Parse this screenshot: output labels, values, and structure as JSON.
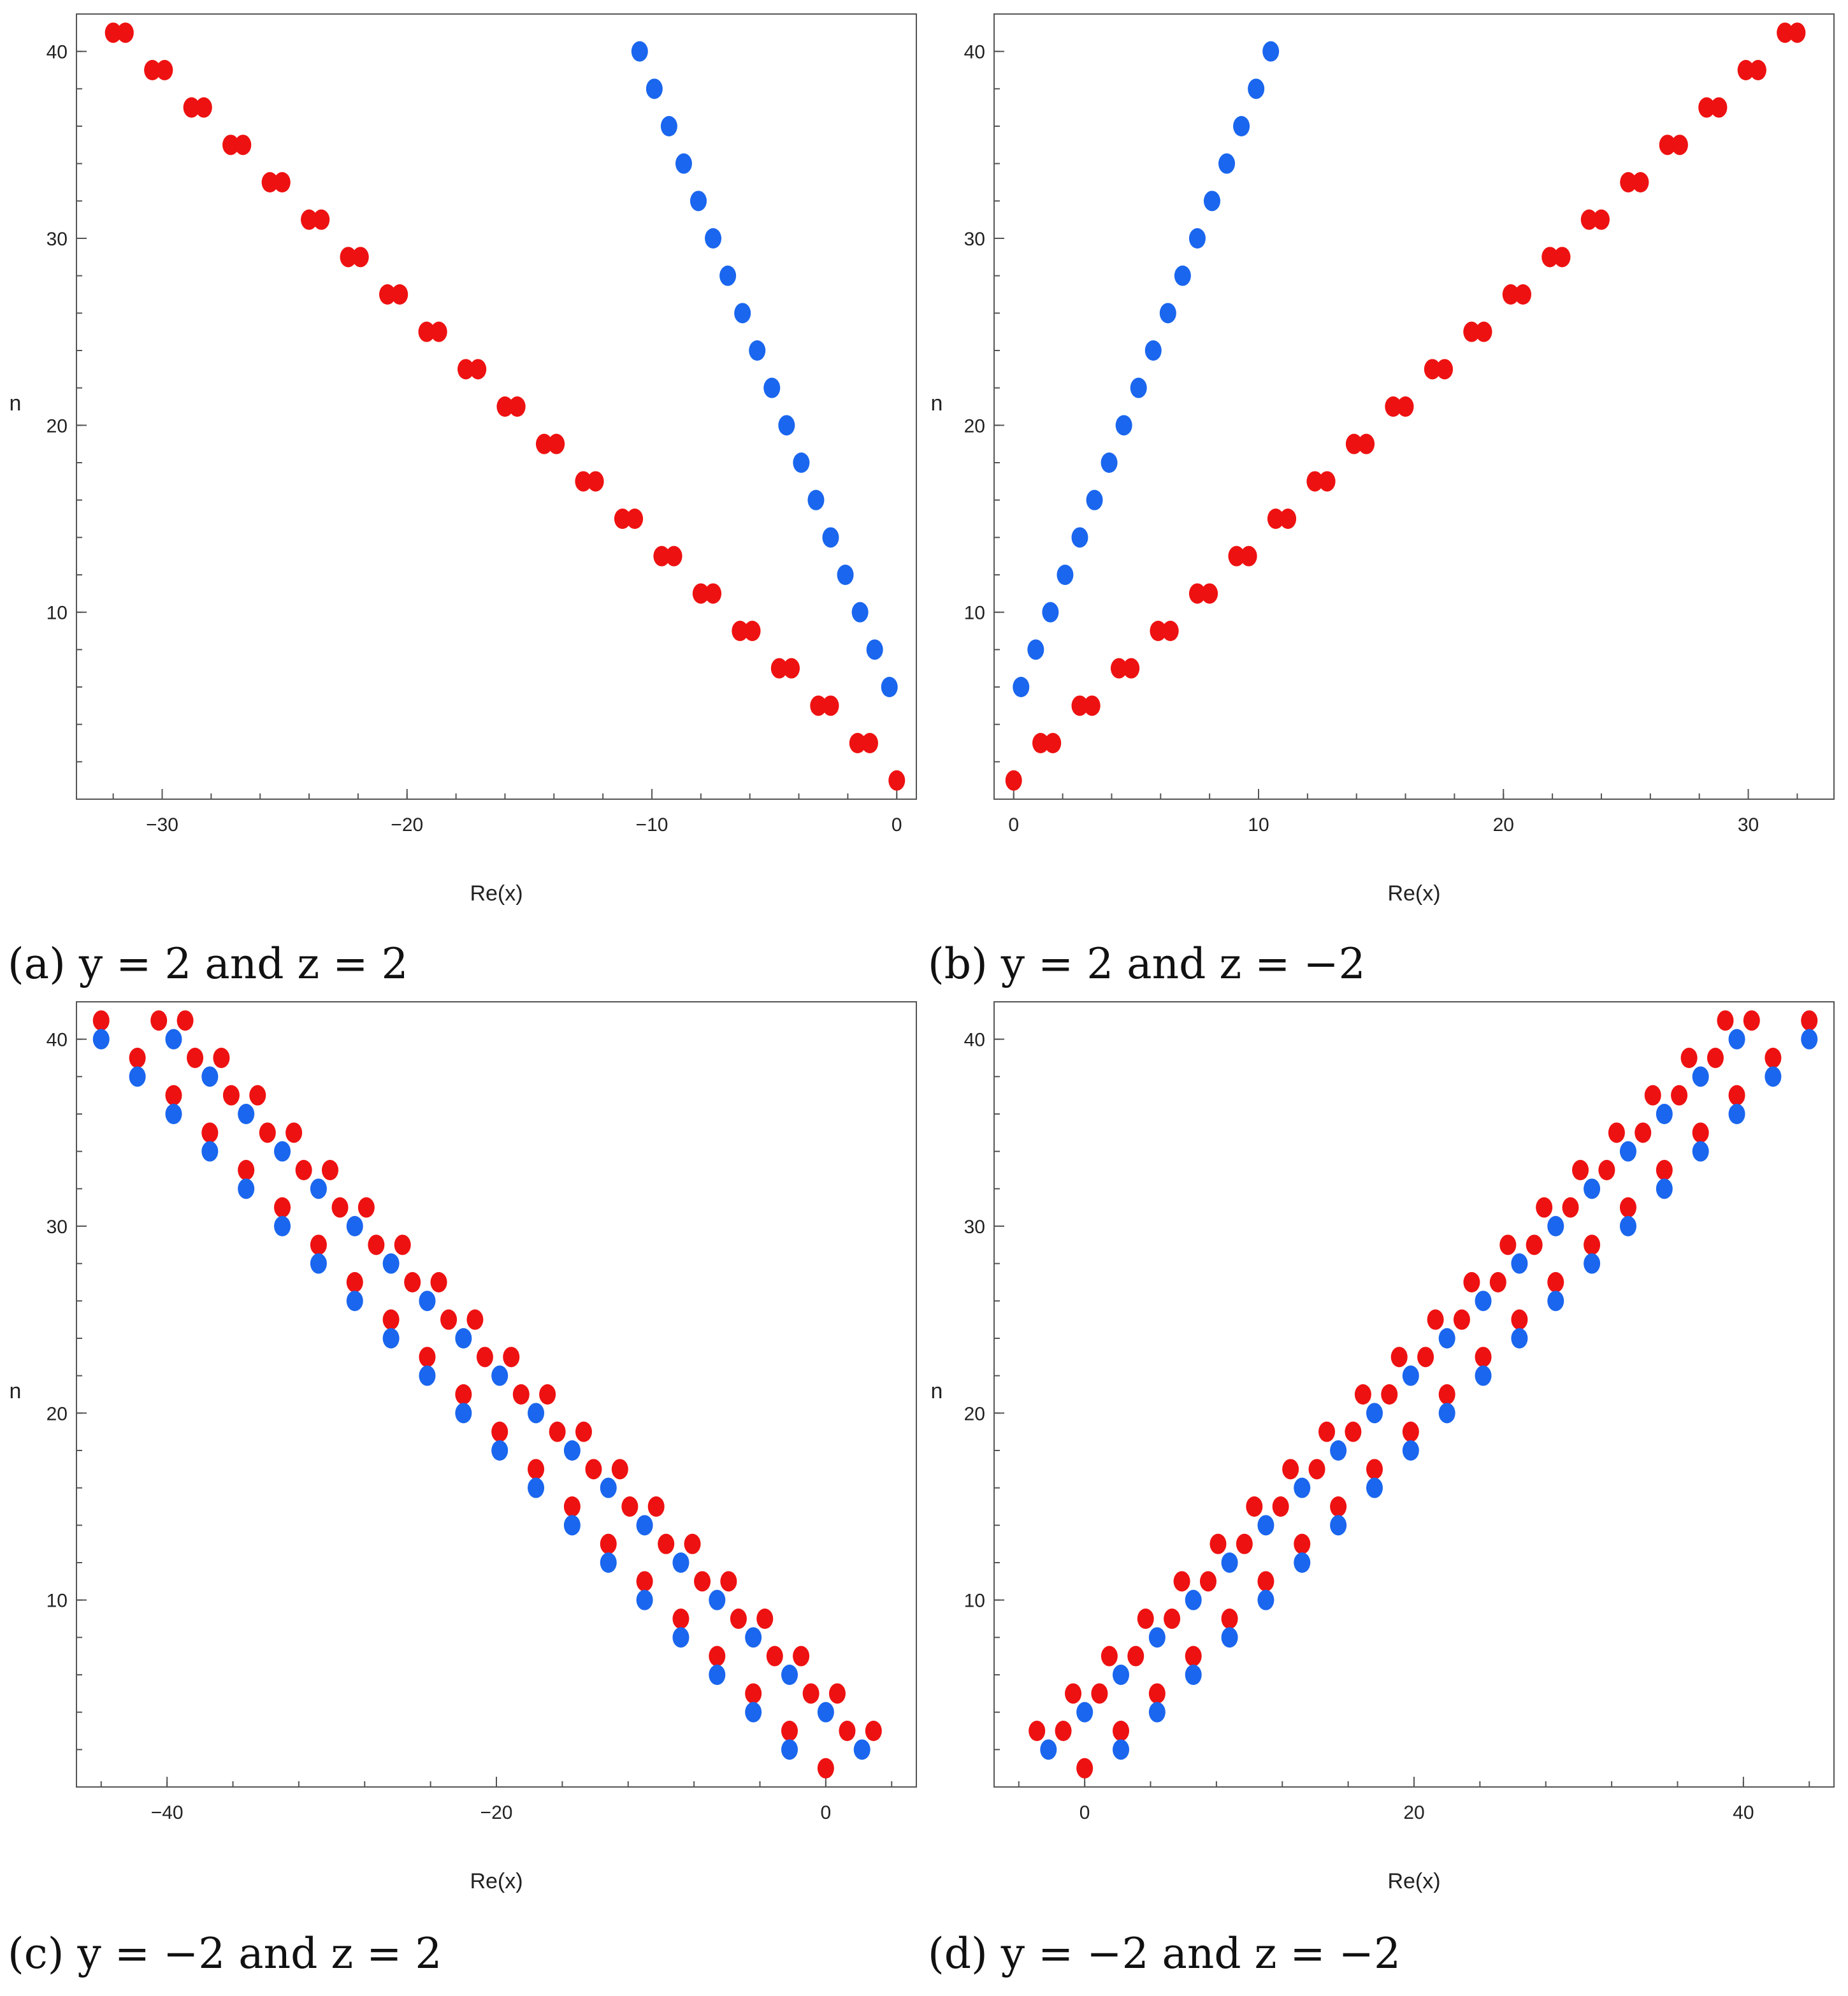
{
  "colors": {
    "odd_points": "#ee1111",
    "even_points": "#1a66ee"
  },
  "chart_data": [
    {
      "type": "scatter",
      "caption": "(a) y = 2 and z = 2",
      "xlabel": "Re(x)",
      "ylabel": "n",
      "xlim": [
        -33.5,
        0.8
      ],
      "ylim": [
        0,
        42
      ],
      "xticks": [
        -30,
        -20,
        -10,
        0
      ],
      "xtick_labels": [
        "−30",
        "−20",
        "−10",
        "0"
      ],
      "yticks": [
        10,
        20,
        30,
        40
      ],
      "ytick_labels": [
        "10",
        "20",
        "30",
        "40"
      ],
      "xminor_step": 2,
      "yminor_step": 2,
      "grid": false,
      "legend": "none",
      "edges": [
        {
          "n0": 1,
          "x0": 0,
          "slope": -0.8
        },
        {
          "n0": 3,
          "x0": -1.1,
          "slope": -0.8
        },
        {
          "n0": 6,
          "x0": -0.3,
          "slope": -0.3
        }
      ]
    },
    {
      "type": "scatter",
      "caption": "(b) y = 2 and z = −2",
      "xlabel": "Re(x)",
      "ylabel": "n",
      "xlim": [
        -0.8,
        33.5
      ],
      "ylim": [
        0,
        42
      ],
      "xticks": [
        0,
        10,
        20,
        30
      ],
      "xtick_labels": [
        "0",
        "10",
        "20",
        "30"
      ],
      "yticks": [
        10,
        20,
        30,
        40
      ],
      "ytick_labels": [
        "10",
        "20",
        "30",
        "40"
      ],
      "xminor_step": 2,
      "yminor_step": 2,
      "grid": false,
      "legend": "none",
      "edges": [
        {
          "n0": 1,
          "x0": 0,
          "slope": 0.8
        },
        {
          "n0": 3,
          "x0": 1.1,
          "slope": 0.8
        },
        {
          "n0": 6,
          "x0": 0.3,
          "slope": 0.3
        }
      ]
    },
    {
      "type": "scatter",
      "caption": "(c) y = −2 and z = 2",
      "xlabel": "Re(x)",
      "ylabel": "n",
      "xlim": [
        -45.5,
        5.5
      ],
      "ylim": [
        0,
        42
      ],
      "xticks": [
        -40,
        -20,
        0
      ],
      "xtick_labels": [
        "−40",
        "−20",
        "0"
      ],
      "yticks": [
        10,
        20,
        30,
        40
      ],
      "ytick_labels": [
        "10",
        "20",
        "30",
        "40"
      ],
      "xminor_step": 4,
      "yminor_step": 2,
      "grid": false,
      "legend": "none",
      "edges": [
        {
          "n0": 1,
          "x0": 0,
          "slope": -1.1
        },
        {
          "n0": 2,
          "x0": -2.2,
          "slope": -1.1
        },
        {
          "n0": 2,
          "x0": 2.2,
          "slope": -1.1
        },
        {
          "n0": 3,
          "x0": 1.3,
          "slope": -1.1
        },
        {
          "n0": 3,
          "x0": 2.9,
          "slope": -1.1
        }
      ]
    },
    {
      "type": "scatter",
      "caption": "(d) y = −2 and z = −2",
      "xlabel": "Re(x)",
      "ylabel": "n",
      "xlim": [
        -5.5,
        45.5
      ],
      "ylim": [
        0,
        42
      ],
      "xticks": [
        0,
        20,
        40
      ],
      "xtick_labels": [
        "0",
        "20",
        "40"
      ],
      "yticks": [
        10,
        20,
        30,
        40
      ],
      "ytick_labels": [
        "10",
        "20",
        "30",
        "40"
      ],
      "xminor_step": 4,
      "yminor_step": 2,
      "grid": false,
      "legend": "none",
      "edges": [
        {
          "n0": 1,
          "x0": 0,
          "slope": 1.1
        },
        {
          "n0": 2,
          "x0": 2.2,
          "slope": 1.1
        },
        {
          "n0": 2,
          "x0": -2.2,
          "slope": 1.1
        },
        {
          "n0": 3,
          "x0": -1.3,
          "slope": 1.1
        },
        {
          "n0": 3,
          "x0": -2.9,
          "slope": 1.1
        }
      ]
    }
  ]
}
